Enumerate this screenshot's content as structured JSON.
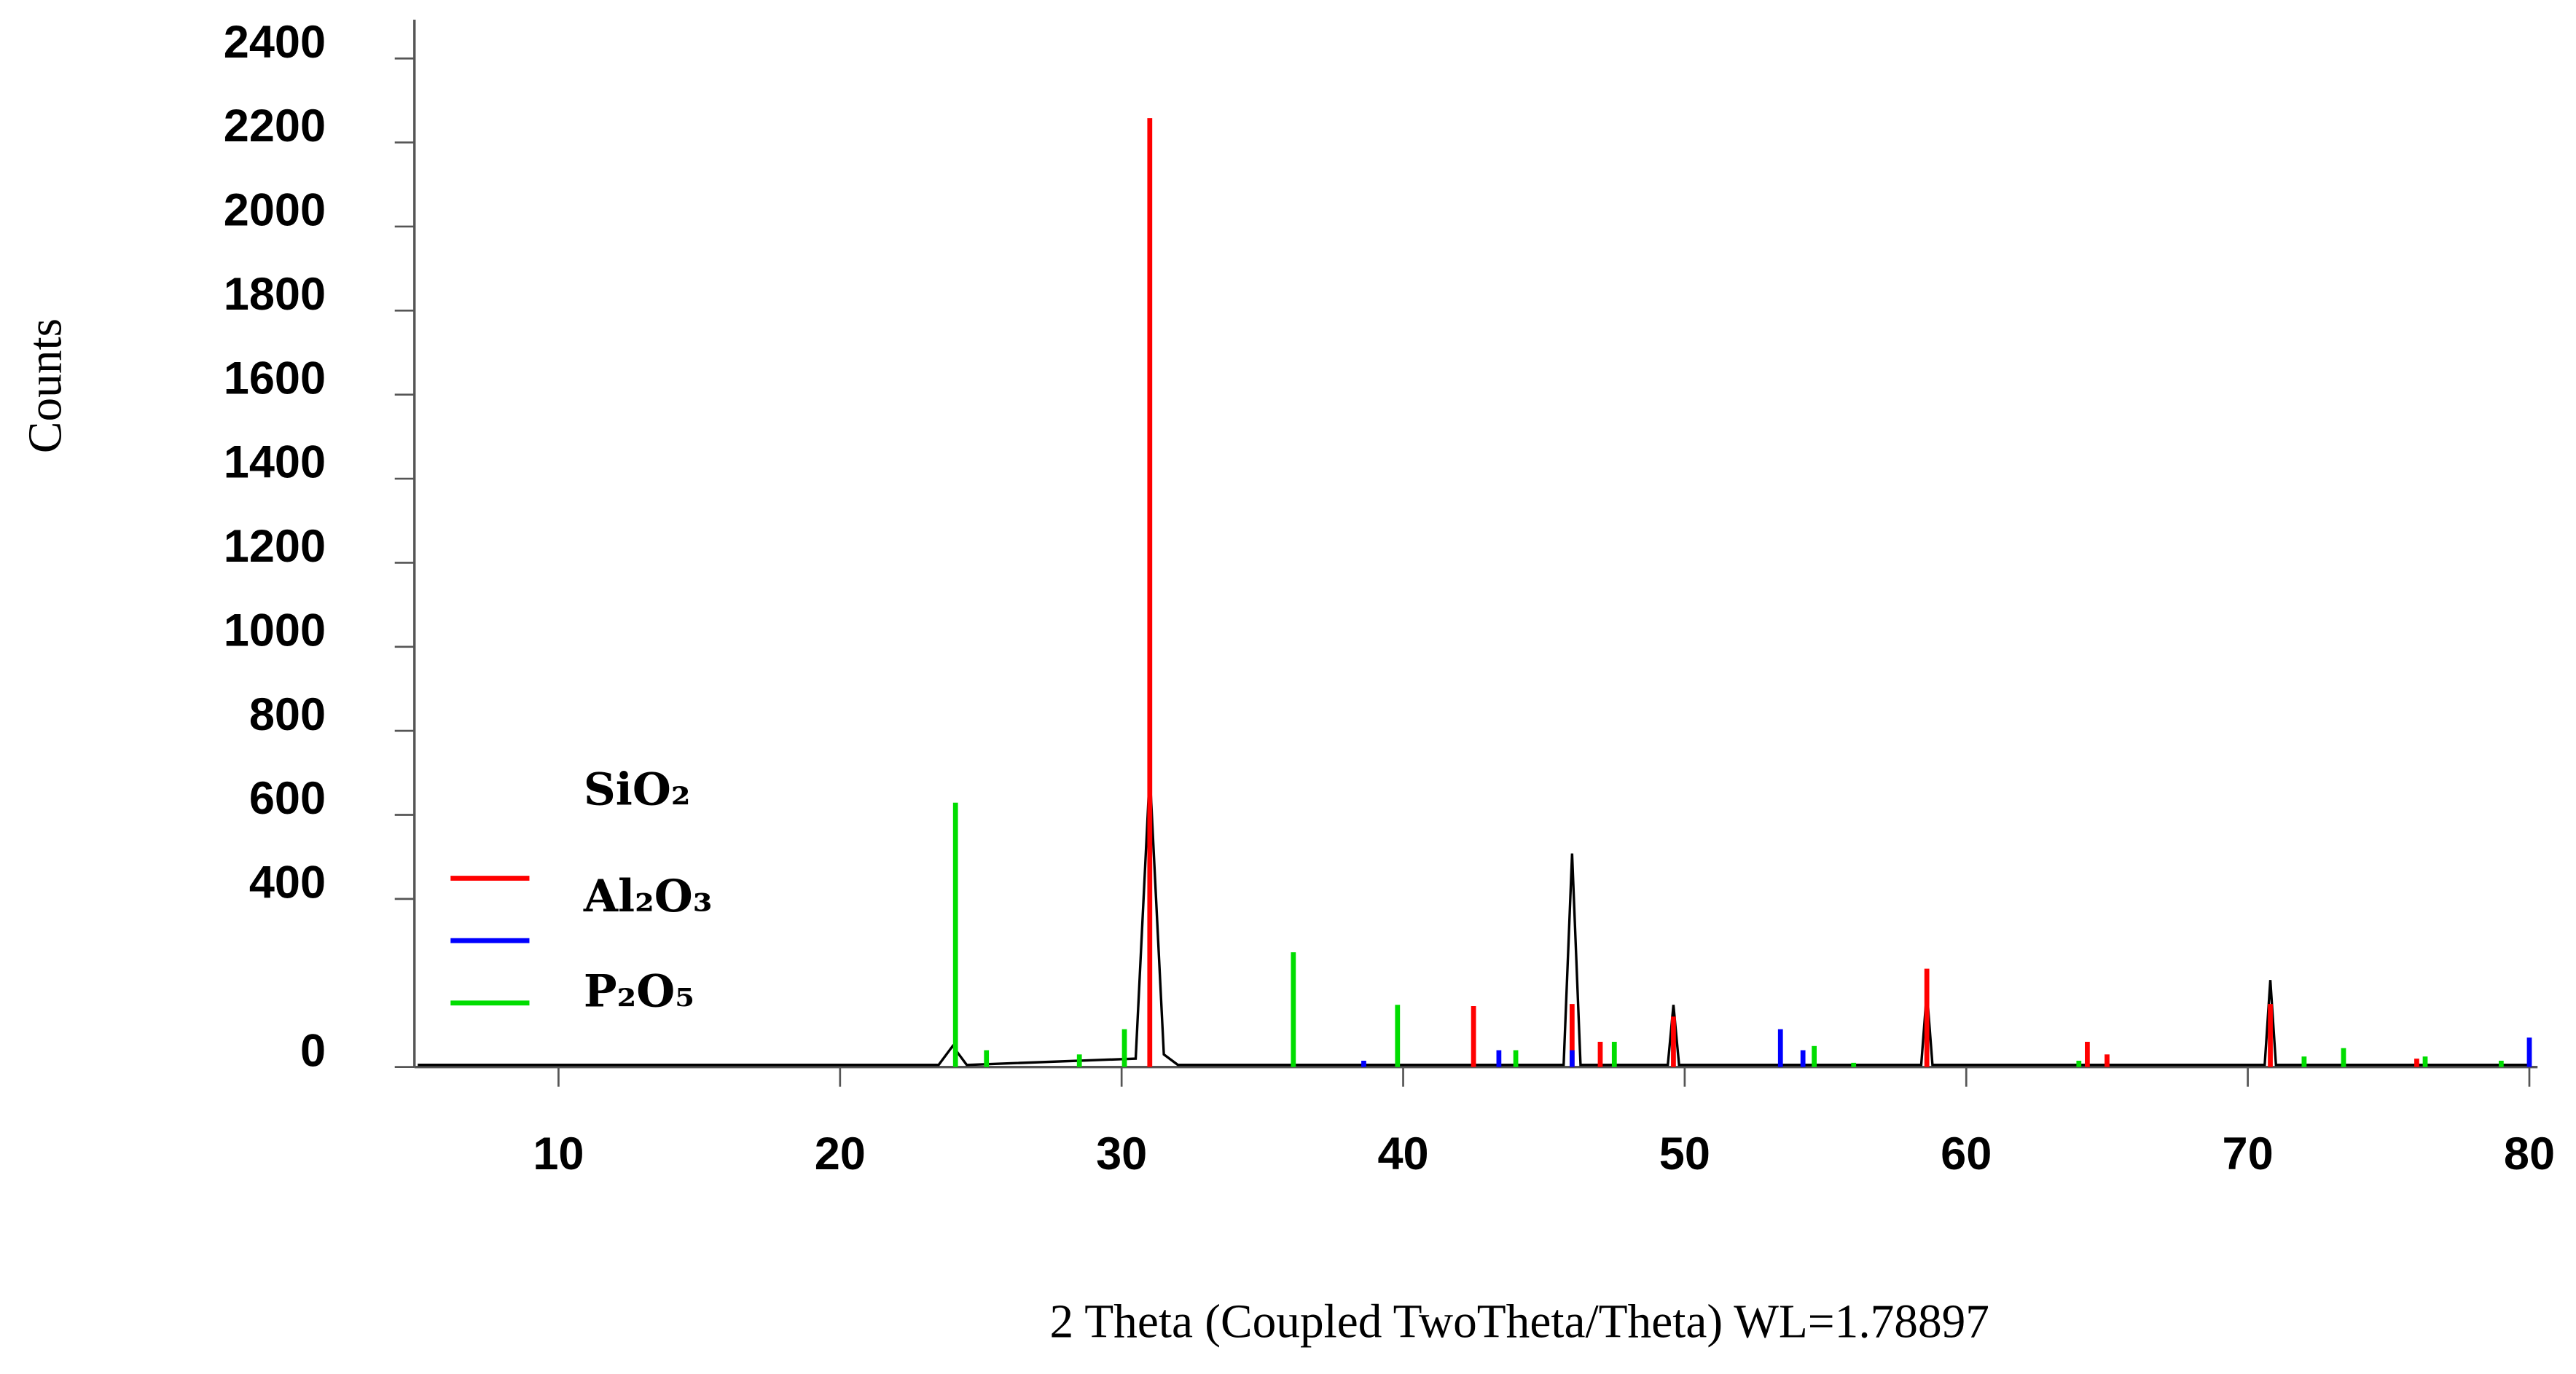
{
  "chart_data": {
    "type": "line",
    "xlabel": "2 Theta (Coupled TwoTheta/Theta) WL=1.78897",
    "ylabel": "Counts",
    "xlim": [
      5,
      80
    ],
    "xticks": [
      10,
      20,
      30,
      40,
      50,
      60,
      70,
      80
    ],
    "ylim": [
      0,
      2500
    ],
    "yticks": [
      0,
      400,
      600,
      800,
      1000,
      1200,
      1400,
      1600,
      1800,
      2000,
      2200,
      2400
    ],
    "series": [
      {
        "name": "SiO₂",
        "color": "#000000",
        "style": "line",
        "x": [
          5,
          23.5,
          24,
          24.5,
          30.5,
          31,
          31.5,
          32,
          45.7,
          46,
          46.3,
          49.4,
          49.6,
          49.8,
          58.4,
          58.6,
          58.8,
          70.6,
          70.8,
          71,
          80
        ],
        "values": [
          5,
          5,
          50,
          5,
          20,
          700,
          30,
          5,
          5,
          508,
          5,
          5,
          148,
          5,
          5,
          180,
          5,
          5,
          207,
          5,
          5
        ]
      },
      {
        "name": "Al₂O₃",
        "color": "#ff0000",
        "style": "stick",
        "x": [
          31,
          42.5,
          46,
          47,
          49.6,
          58.6,
          64.3,
          65,
          70.8,
          76
        ],
        "values": [
          2258,
          145,
          150,
          60,
          120,
          234,
          60,
          30,
          150,
          20
        ]
      },
      {
        "color": "#0000ff",
        "style": "stick",
        "x": [
          38.6,
          43.4,
          46,
          53.4,
          54.2,
          80
        ],
        "values": [
          15,
          40,
          40,
          90,
          40,
          70
        ]
      },
      {
        "name": "P₂O₅",
        "color": "#00dd00",
        "style": "stick",
        "x": [
          24.1,
          25.2,
          28.5,
          30.1,
          36.1,
          39.8,
          44,
          47.5,
          54.6,
          56,
          64,
          72,
          73.4,
          76.3,
          79
        ],
        "values": [
          629,
          40,
          30,
          90,
          273,
          148,
          40,
          60,
          50,
          10,
          15,
          25,
          45,
          25,
          15
        ]
      }
    ]
  }
}
